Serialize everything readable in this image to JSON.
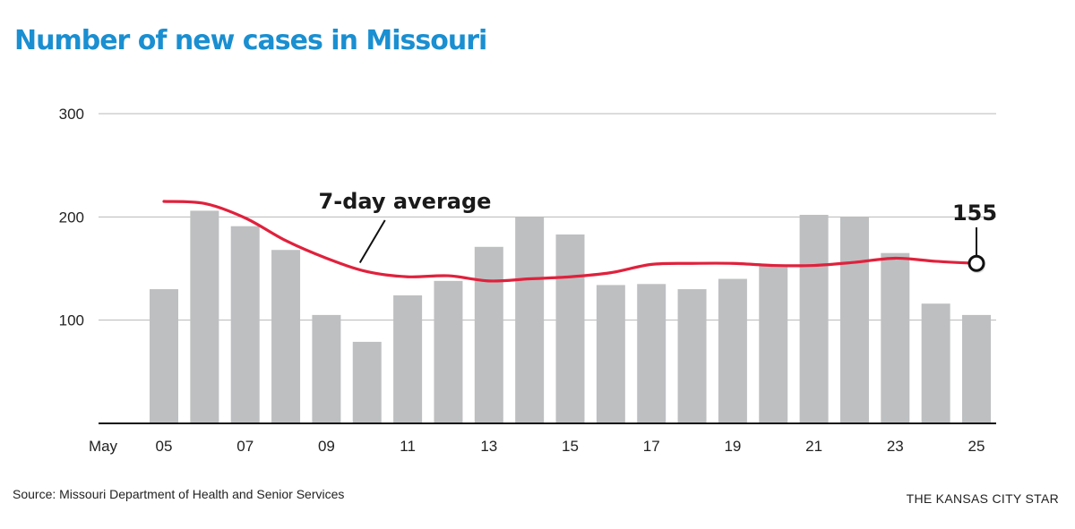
{
  "header": {
    "title": "Number of new cases in Missouri"
  },
  "footer": {
    "source": "Source: Missouri Department of Health and Senior Services",
    "credit": "THE KANSAS CITY STAR"
  },
  "chart_data": {
    "type": "bar",
    "title": "Number of new cases in Missouri",
    "xlabel": "",
    "ylabel": "",
    "x_axis_month_label": "May",
    "categories": [
      "05",
      "06",
      "07",
      "08",
      "09",
      "10",
      "11",
      "12",
      "13",
      "14",
      "15",
      "16",
      "17",
      "18",
      "19",
      "20",
      "21",
      "22",
      "23",
      "24",
      "25"
    ],
    "x_tick_labels": [
      "05",
      "07",
      "09",
      "11",
      "13",
      "15",
      "17",
      "19",
      "21",
      "23",
      "25"
    ],
    "y_tick_labels": [
      "100",
      "200",
      "300"
    ],
    "ylim": [
      0,
      300
    ],
    "series": [
      {
        "name": "",
        "type": "bar",
        "color": "#bebfc1",
        "values": [
          130,
          206,
          191,
          168,
          105,
          79,
          124,
          138,
          171,
          200,
          183,
          134,
          135,
          130,
          140,
          153,
          202,
          200,
          165,
          116,
          105
        ]
      },
      {
        "name": "7-day average",
        "type": "line",
        "color": "#e0213c",
        "values": [
          215,
          213,
          199,
          177,
          160,
          147,
          142,
          143,
          138,
          140,
          142,
          146,
          154,
          155,
          155,
          153,
          153,
          156,
          160,
          157,
          155
        ]
      }
    ],
    "annotations": [
      {
        "text": "7-day average",
        "target": "7-day average line"
      },
      {
        "text": "155",
        "target": "last 7-day average point (May 25)"
      }
    ],
    "grid": true,
    "legend": "none"
  }
}
